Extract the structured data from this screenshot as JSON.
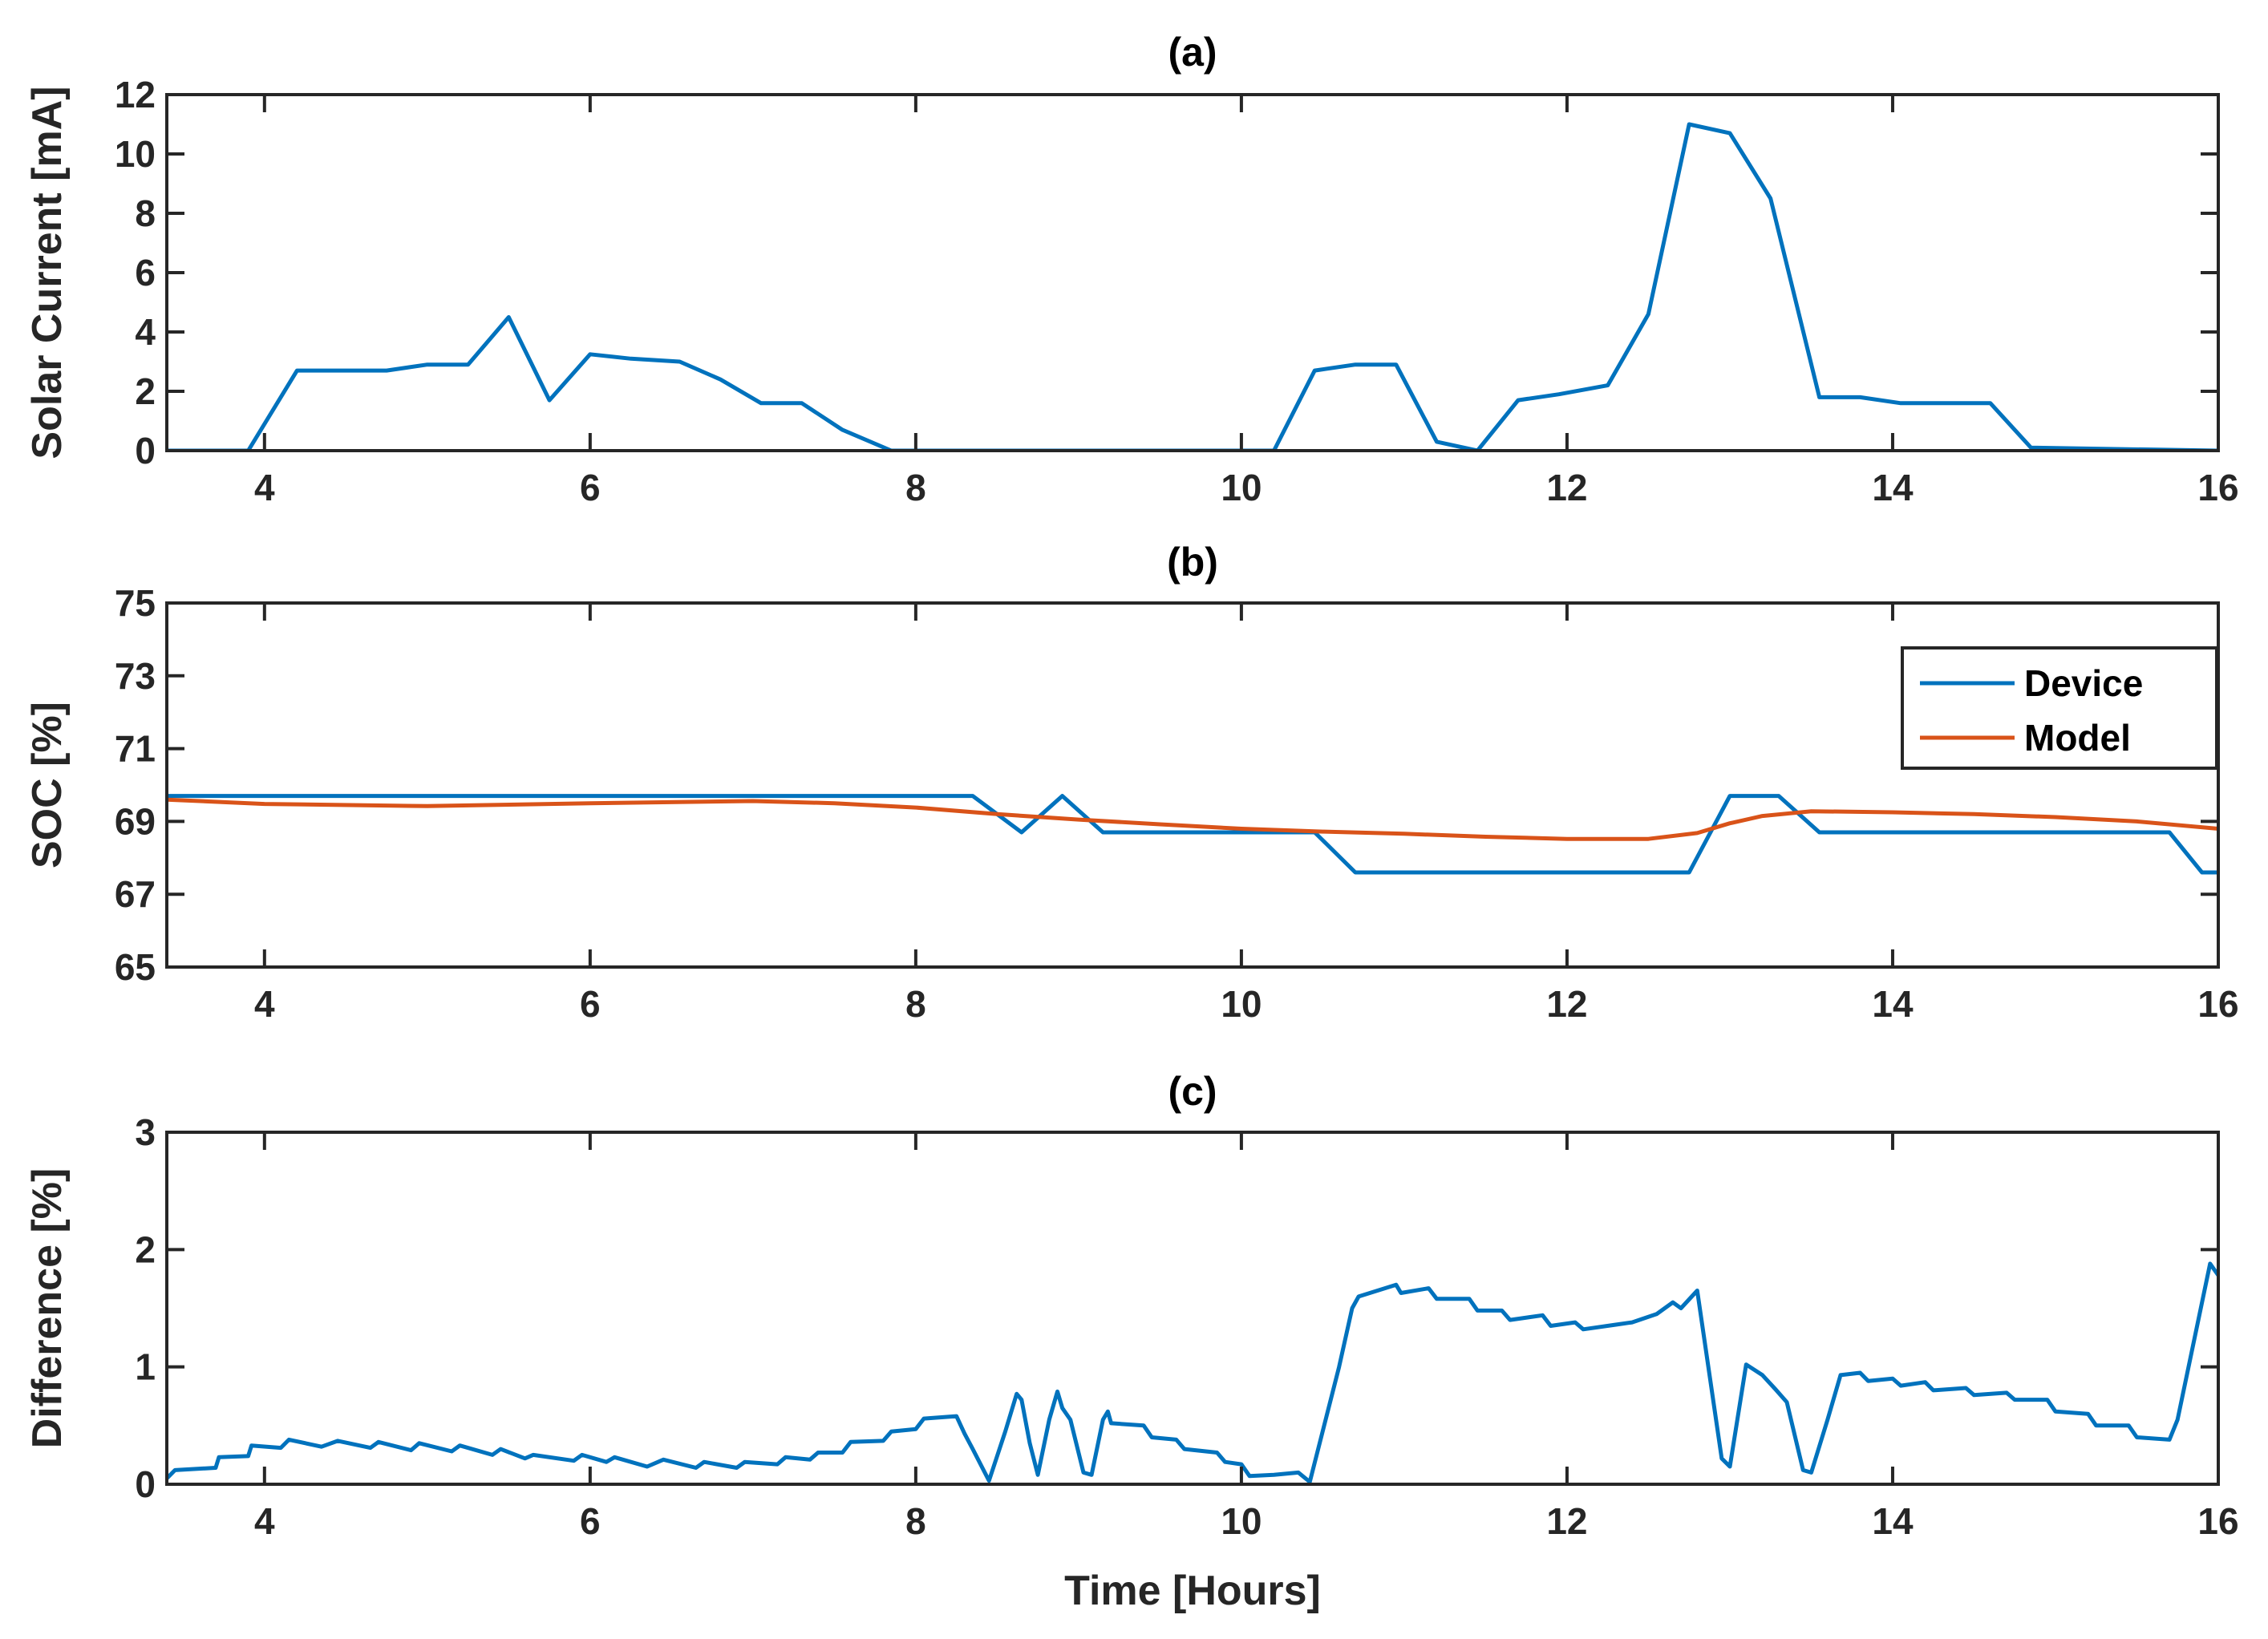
{
  "colors": {
    "device": "#0072BD",
    "model": "#D95319",
    "axis": "#262626"
  },
  "chart_data": [
    {
      "type": "line",
      "id": "a",
      "title": "(a)",
      "xlabel": "",
      "ylabel": "Solar Current [mA]",
      "xlim": [
        3.4,
        16
      ],
      "ylim": [
        0,
        12
      ],
      "xticks": [
        "4",
        "6",
        "8",
        "10",
        "12",
        "14",
        "16"
      ],
      "yticks": [
        "0",
        "2",
        "4",
        "6",
        "8",
        "10",
        "12"
      ],
      "series": [
        {
          "name": "Solar Current",
          "color": "#0072BD",
          "points": [
            [
              3.4,
              0
            ],
            [
              3.9,
              0
            ],
            [
              4.2,
              2.7
            ],
            [
              4.75,
              2.7
            ],
            [
              5.0,
              2.9
            ],
            [
              5.25,
              2.9
            ],
            [
              5.5,
              4.5
            ],
            [
              5.75,
              1.7
            ],
            [
              6.0,
              3.25
            ],
            [
              6.25,
              3.1
            ],
            [
              6.55,
              3.0
            ],
            [
              6.8,
              2.4
            ],
            [
              7.05,
              1.6
            ],
            [
              7.3,
              1.6
            ],
            [
              7.55,
              0.7
            ],
            [
              7.85,
              0
            ],
            [
              10.2,
              0
            ],
            [
              10.45,
              2.7
            ],
            [
              10.7,
              2.9
            ],
            [
              10.95,
              2.9
            ],
            [
              11.2,
              0.3
            ],
            [
              11.45,
              0
            ],
            [
              11.7,
              1.7
            ],
            [
              11.95,
              1.9
            ],
            [
              12.25,
              2.2
            ],
            [
              12.5,
              4.6
            ],
            [
              12.75,
              11.0
            ],
            [
              13.0,
              10.7
            ],
            [
              13.25,
              8.5
            ],
            [
              13.55,
              1.8
            ],
            [
              13.8,
              1.8
            ],
            [
              14.05,
              1.6
            ],
            [
              14.3,
              1.6
            ],
            [
              14.6,
              1.6
            ],
            [
              14.85,
              0.1
            ],
            [
              16,
              0
            ]
          ]
        }
      ]
    },
    {
      "type": "line",
      "id": "b",
      "title": "(b)",
      "xlabel": "",
      "ylabel": "SOC [%]",
      "xlim": [
        3.4,
        16
      ],
      "ylim": [
        65,
        75
      ],
      "xticks": [
        "4",
        "6",
        "8",
        "10",
        "12",
        "14",
        "16"
      ],
      "yticks": [
        "65",
        "67",
        "69",
        "71",
        "73",
        "75"
      ],
      "legend": {
        "position": "top-right",
        "entries": [
          "Device",
          "Model"
        ]
      },
      "series": [
        {
          "name": "Device",
          "color": "#0072BD",
          "points": [
            [
              3.4,
              69.7
            ],
            [
              8.35,
              69.7
            ],
            [
              8.65,
              68.7
            ],
            [
              8.9,
              69.7
            ],
            [
              9.15,
              68.7
            ],
            [
              10.45,
              68.7
            ],
            [
              10.7,
              67.6
            ],
            [
              12.75,
              67.6
            ],
            [
              13.0,
              69.7
            ],
            [
              13.3,
              69.7
            ],
            [
              13.55,
              68.7
            ],
            [
              15.7,
              68.7
            ],
            [
              15.9,
              67.6
            ],
            [
              16.0,
              67.6
            ]
          ]
        },
        {
          "name": "Model",
          "color": "#D95319",
          "points": [
            [
              3.4,
              69.6
            ],
            [
              4.0,
              69.48
            ],
            [
              5.0,
              69.42
            ],
            [
              6.0,
              69.5
            ],
            [
              7.0,
              69.56
            ],
            [
              7.5,
              69.5
            ],
            [
              8.0,
              69.38
            ],
            [
              8.5,
              69.2
            ],
            [
              9.0,
              69.05
            ],
            [
              9.5,
              68.92
            ],
            [
              10.0,
              68.8
            ],
            [
              10.5,
              68.72
            ],
            [
              11.0,
              68.66
            ],
            [
              11.5,
              68.58
            ],
            [
              12.0,
              68.52
            ],
            [
              12.5,
              68.52
            ],
            [
              12.8,
              68.68
            ],
            [
              13.0,
              68.95
            ],
            [
              13.2,
              69.15
            ],
            [
              13.5,
              69.28
            ],
            [
              14.0,
              69.25
            ],
            [
              14.5,
              69.2
            ],
            [
              15.0,
              69.12
            ],
            [
              15.5,
              69.0
            ],
            [
              16.0,
              68.8
            ]
          ]
        }
      ]
    },
    {
      "type": "line",
      "id": "c",
      "title": "(c)",
      "xlabel": "Time [Hours]",
      "ylabel": "Difference [%]",
      "xlim": [
        3.4,
        16
      ],
      "ylim": [
        0,
        3
      ],
      "xticks": [
        "4",
        "6",
        "8",
        "10",
        "12",
        "14",
        "16"
      ],
      "yticks": [
        "0",
        "1",
        "2",
        "3"
      ],
      "series": [
        {
          "name": "Difference",
          "color": "#0072BD",
          "points": [
            [
              3.4,
              0.05
            ],
            [
              3.45,
              0.12
            ],
            [
              3.7,
              0.14
            ],
            [
              3.72,
              0.23
            ],
            [
              3.9,
              0.24
            ],
            [
              3.92,
              0.33
            ],
            [
              4.1,
              0.31
            ],
            [
              4.15,
              0.38
            ],
            [
              4.35,
              0.32
            ],
            [
              4.45,
              0.37
            ],
            [
              4.65,
              0.31
            ],
            [
              4.7,
              0.36
            ],
            [
              4.9,
              0.29
            ],
            [
              4.95,
              0.35
            ],
            [
              5.15,
              0.28
            ],
            [
              5.2,
              0.33
            ],
            [
              5.4,
              0.25
            ],
            [
              5.45,
              0.3
            ],
            [
              5.6,
              0.22
            ],
            [
              5.65,
              0.25
            ],
            [
              5.9,
              0.2
            ],
            [
              5.95,
              0.25
            ],
            [
              6.1,
              0.19
            ],
            [
              6.15,
              0.23
            ],
            [
              6.35,
              0.15
            ],
            [
              6.45,
              0.21
            ],
            [
              6.65,
              0.14
            ],
            [
              6.7,
              0.19
            ],
            [
              6.9,
              0.14
            ],
            [
              6.95,
              0.19
            ],
            [
              7.15,
              0.17
            ],
            [
              7.2,
              0.23
            ],
            [
              7.35,
              0.21
            ],
            [
              7.4,
              0.27
            ],
            [
              7.55,
              0.27
            ],
            [
              7.6,
              0.36
            ],
            [
              7.8,
              0.37
            ],
            [
              7.85,
              0.45
            ],
            [
              8.0,
              0.47
            ],
            [
              8.05,
              0.56
            ],
            [
              8.25,
              0.58
            ],
            [
              8.3,
              0.43
            ],
            [
              8.35,
              0.3
            ],
            [
              8.45,
              0.03
            ],
            [
              8.55,
              0.45
            ],
            [
              8.62,
              0.77
            ],
            [
              8.65,
              0.72
            ],
            [
              8.7,
              0.35
            ],
            [
              8.75,
              0.08
            ],
            [
              8.82,
              0.55
            ],
            [
              8.87,
              0.79
            ],
            [
              8.9,
              0.65
            ],
            [
              8.95,
              0.55
            ],
            [
              9.03,
              0.1
            ],
            [
              9.08,
              0.08
            ],
            [
              9.15,
              0.55
            ],
            [
              9.18,
              0.62
            ],
            [
              9.2,
              0.52
            ],
            [
              9.4,
              0.5
            ],
            [
              9.45,
              0.4
            ],
            [
              9.6,
              0.38
            ],
            [
              9.65,
              0.3
            ],
            [
              9.85,
              0.27
            ],
            [
              9.9,
              0.19
            ],
            [
              10.0,
              0.17
            ],
            [
              10.05,
              0.07
            ],
            [
              10.2,
              0.08
            ],
            [
              10.35,
              0.1
            ],
            [
              10.42,
              0.02
            ],
            [
              10.6,
              1.0
            ],
            [
              10.68,
              1.5
            ],
            [
              10.72,
              1.6
            ],
            [
              10.95,
              1.7
            ],
            [
              10.98,
              1.63
            ],
            [
              11.15,
              1.67
            ],
            [
              11.2,
              1.58
            ],
            [
              11.4,
              1.58
            ],
            [
              11.45,
              1.48
            ],
            [
              11.6,
              1.48
            ],
            [
              11.65,
              1.4
            ],
            [
              11.85,
              1.44
            ],
            [
              11.9,
              1.35
            ],
            [
              12.05,
              1.38
            ],
            [
              12.1,
              1.32
            ],
            [
              12.3,
              1.36
            ],
            [
              12.4,
              1.38
            ],
            [
              12.55,
              1.45
            ],
            [
              12.65,
              1.55
            ],
            [
              12.7,
              1.5
            ],
            [
              12.8,
              1.65
            ],
            [
              12.95,
              0.22
            ],
            [
              13.0,
              0.15
            ],
            [
              13.1,
              1.02
            ],
            [
              13.2,
              0.93
            ],
            [
              13.28,
              0.81
            ],
            [
              13.35,
              0.7
            ],
            [
              13.45,
              0.12
            ],
            [
              13.5,
              0.1
            ],
            [
              13.6,
              0.55
            ],
            [
              13.68,
              0.93
            ],
            [
              13.8,
              0.95
            ],
            [
              13.85,
              0.88
            ],
            [
              14.0,
              0.9
            ],
            [
              14.05,
              0.84
            ],
            [
              14.2,
              0.87
            ],
            [
              14.25,
              0.8
            ],
            [
              14.45,
              0.82
            ],
            [
              14.5,
              0.76
            ],
            [
              14.7,
              0.78
            ],
            [
              14.75,
              0.72
            ],
            [
              14.95,
              0.72
            ],
            [
              15.0,
              0.62
            ],
            [
              15.2,
              0.6
            ],
            [
              15.25,
              0.5
            ],
            [
              15.45,
              0.5
            ],
            [
              15.5,
              0.4
            ],
            [
              15.7,
              0.38
            ],
            [
              15.75,
              0.55
            ],
            [
              15.95,
              1.88
            ],
            [
              16.0,
              1.78
            ]
          ]
        }
      ]
    }
  ]
}
